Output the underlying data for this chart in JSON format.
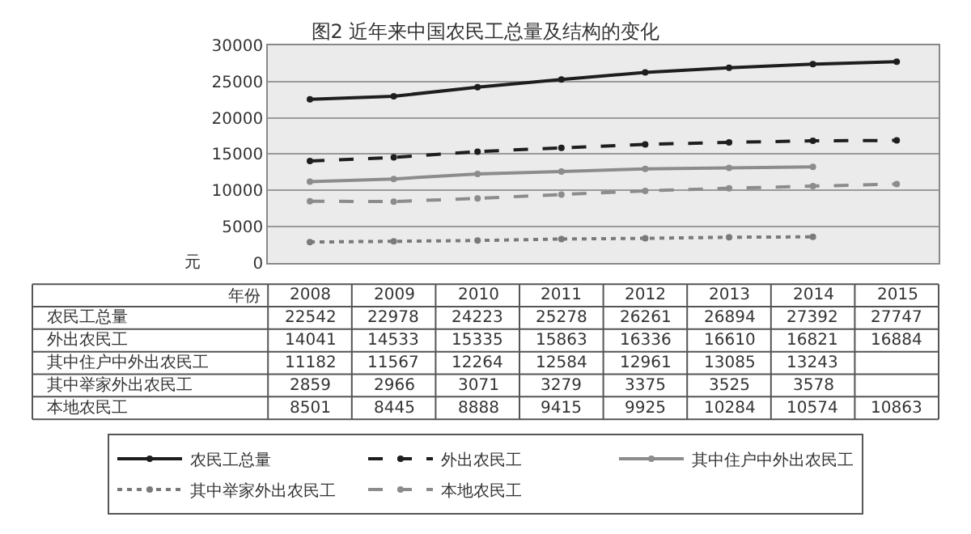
{
  "chart_data": {
    "type": "line",
    "title": "图2 近年来中国农民工总量及结构的变化",
    "xlabel": "年份",
    "ylabel": "元",
    "categories": [
      "2008",
      "2009",
      "2010",
      "2011",
      "2012",
      "2013",
      "2014",
      "2015"
    ],
    "series": [
      {
        "name": "农民工总量",
        "color": "#1e1e1e",
        "line_style": "solid",
        "values": [
          22542,
          22978,
          24223,
          25278,
          26261,
          26894,
          27392,
          27747
        ]
      },
      {
        "name": "外出农民工",
        "color": "#1e1e1e",
        "line_style": "dashed",
        "values": [
          14041,
          14533,
          15335,
          15863,
          16336,
          16610,
          16821,
          16884
        ]
      },
      {
        "name": "其中住户中外出农民工",
        "color": "#8c8c8c",
        "line_style": "solid",
        "values": [
          11182,
          11567,
          12264,
          12584,
          12961,
          13085,
          13243,
          null
        ]
      },
      {
        "name": "其中举家外出农民工",
        "color": "#7a7a7a",
        "line_style": "dotted",
        "values": [
          2859,
          2966,
          3071,
          3279,
          3375,
          3525,
          3578,
          null
        ]
      },
      {
        "name": "本地农民工",
        "color": "#8c8c8c",
        "line_style": "dashed",
        "values": [
          8501,
          8445,
          8888,
          9415,
          9925,
          10284,
          10574,
          10863
        ]
      }
    ],
    "ylim": [
      0,
      30000
    ],
    "yticks": [
      0,
      5000,
      10000,
      15000,
      20000,
      25000,
      30000
    ],
    "grid": "y",
    "legend": "bottom",
    "marker": "circle",
    "data_labels": true,
    "tick_labels": "y"
  }
}
